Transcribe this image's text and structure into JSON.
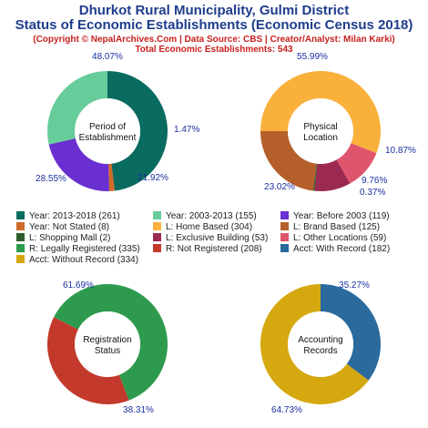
{
  "header": {
    "title_line1": "Dhurkot Rural Municipality, Gulmi District",
    "title_line2": "Status of Economic Establishments (Economic Census 2018)",
    "copyright": "(Copyright © NepalArchives.Com | Data Source: CBS | Creator/Analyst: Milan Karki)",
    "total": "Total Economic Establishments: 543"
  },
  "chart_data": [
    {
      "type": "pie",
      "center_label": [
        "Period of",
        "Establishment"
      ],
      "slices": [
        {
          "label": "Year: 2013-2018 (261)",
          "value": 261,
          "pct": "48.07%",
          "color": "#0a6b5f"
        },
        {
          "label": "Year: Not Stated (8)",
          "value": 8,
          "pct": "1.47%",
          "color": "#d06a28"
        },
        {
          "label": "Year: Before 2003 (119)",
          "value": 119,
          "pct": "21.92%",
          "color": "#6a2fd0"
        },
        {
          "label": "Year: 2003-2013 (155)",
          "value": 155,
          "pct": "28.55%",
          "color": "#66cc99"
        }
      ]
    },
    {
      "type": "pie",
      "center_label": [
        "Physical",
        "Location"
      ],
      "slices": [
        {
          "label": "L: Home Based (304)",
          "value": 304,
          "pct": "55.99%",
          "color": "#f9b13c"
        },
        {
          "label": "L: Other Locations (59)",
          "value": 59,
          "pct": "10.87%",
          "color": "#e0556e"
        },
        {
          "label": "L: Exclusive Building (53)",
          "value": 53,
          "pct": "9.76%",
          "color": "#9c2952"
        },
        {
          "label": "L: Shopping Mall (2)",
          "value": 2,
          "pct": "0.37%",
          "color": "#2f5e2a"
        },
        {
          "label": "L: Brand Based (125)",
          "value": 125,
          "pct": "23.02%",
          "color": "#b5602a"
        }
      ]
    },
    {
      "type": "pie",
      "center_label": [
        "Registration",
        "Status"
      ],
      "slices": [
        {
          "label": "R: Not Registered (208)",
          "value": 208,
          "pct": "38.31%",
          "color": "#c33a2c"
        },
        {
          "label": "R: Legally Registered (335)",
          "value": 335,
          "pct": "61.69%",
          "color": "#2e9a4e"
        }
      ]
    },
    {
      "type": "pie",
      "center_label": [
        "Accounting",
        "Records"
      ],
      "slices": [
        {
          "label": "Acct: With Record (182)",
          "value": 182,
          "pct": "35.27%",
          "color": "#2a6a9c"
        },
        {
          "label": "Acct: Without Record (334)",
          "value": 334,
          "pct": "64.73%",
          "color": "#d6a810"
        }
      ]
    }
  ],
  "legend": [
    {
      "label": "Year: 2013-2018 (261)",
      "color": "#0a6b5f"
    },
    {
      "label": "Year: 2003-2013 (155)",
      "color": "#66cc99"
    },
    {
      "label": "Year: Before 2003 (119)",
      "color": "#6a2fd0"
    },
    {
      "label": "Year: Not Stated (8)",
      "color": "#d06a28"
    },
    {
      "label": "L: Home Based (304)",
      "color": "#f9b13c"
    },
    {
      "label": "L: Brand Based (125)",
      "color": "#b5602a"
    },
    {
      "label": "L: Shopping Mall (2)",
      "color": "#2f5e2a"
    },
    {
      "label": "L: Exclusive Building (53)",
      "color": "#9c2952"
    },
    {
      "label": "L: Other Locations (59)",
      "color": "#e0556e"
    },
    {
      "label": "R: Legally Registered (335)",
      "color": "#2e9a4e"
    },
    {
      "label": "R: Not Registered (208)",
      "color": "#c33a2c"
    },
    {
      "label": "Acct: With Record (182)",
      "color": "#2a6a9c"
    },
    {
      "label": "Acct: Without Record (334)",
      "color": "#d6a810"
    }
  ]
}
